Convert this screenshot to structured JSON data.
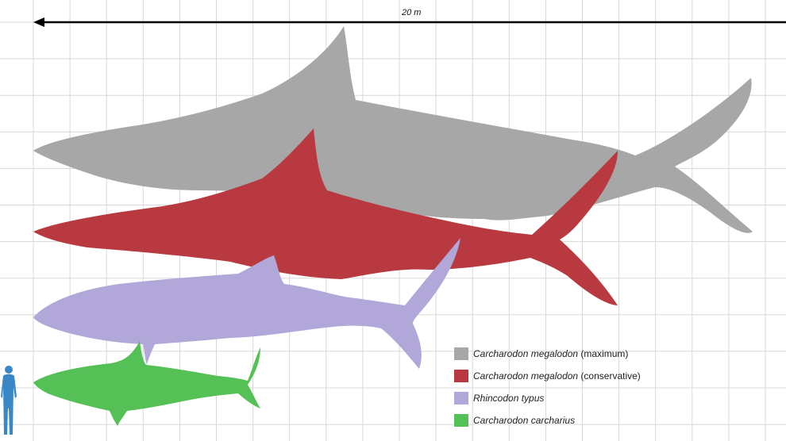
{
  "scale": {
    "label": "20 m"
  },
  "colors": {
    "megalodon_max": "#a7a7a7",
    "megalodon_cons": "#b83a40",
    "whale_shark": "#b1a8d9",
    "great_white": "#55c055",
    "human": "#3a87c8",
    "grid": "#d8d8d8"
  },
  "legend": [
    {
      "sci": "Carcharodon megalodon",
      "note": " (maximum)",
      "color": "#a7a7a7"
    },
    {
      "sci": "Carcharodon megalodon",
      "note": " (conservative)",
      "color": "#b83a40"
    },
    {
      "sci": "Rhincodon typus",
      "note": "",
      "color": "#b1a8d9"
    },
    {
      "sci": "Carcharodon carcharius",
      "note": "",
      "color": "#55c055"
    }
  ],
  "icons": {
    "human": "human-silhouette-icon",
    "arrow": "scale-arrow-icon"
  }
}
